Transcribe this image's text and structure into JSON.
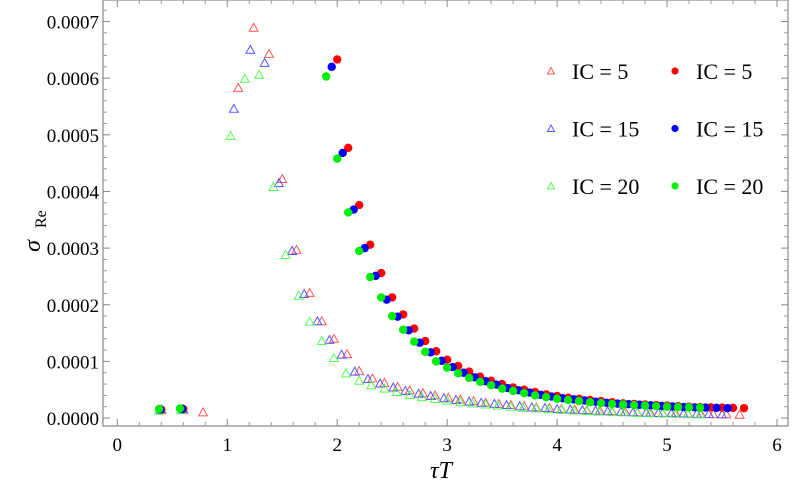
{
  "chart_data": {
    "type": "scatter",
    "title": "",
    "xlabel": "τT",
    "ylabel": "σ",
    "ylabel_subscript": "Re",
    "xlim": [
      -0.13,
      6.1
    ],
    "ylim": [
      -1.4e-05,
      0.000738
    ],
    "xticks": [
      0,
      1,
      2,
      3,
      4,
      5,
      6
    ],
    "xtick_labels": [
      "0",
      "1",
      "2",
      "3",
      "4",
      "5",
      "6"
    ],
    "yticks": [
      0,
      0.0001,
      0.0002,
      0.0003,
      0.0004,
      0.0005,
      0.0006,
      0.0007
    ],
    "ytick_labels": [
      "0.0000",
      "0.0001",
      "0.0002",
      "0.0003",
      "0.0004",
      "0.0005",
      "0.0006",
      "0.0007"
    ],
    "grid": false,
    "legend_placement": "top-right",
    "y_scale_factor": 0.0001,
    "series": [
      {
        "name": "IC = 5",
        "marker": "triangle",
        "color": "#ff5555",
        "x": [
          0.4,
          0.6,
          0.78,
          1.1,
          1.24,
          1.38,
          1.5,
          1.63,
          1.75,
          1.86,
          1.97,
          2.09,
          2.2,
          2.32,
          2.43,
          2.55,
          2.66,
          2.78,
          2.89,
          3.01,
          3.12,
          3.24,
          3.35,
          3.47,
          3.58,
          3.7,
          3.81,
          3.93,
          4.04,
          4.16,
          4.27,
          4.39,
          4.5,
          4.62,
          4.73,
          4.85,
          4.96,
          5.08,
          5.19,
          5.31,
          5.42,
          5.54,
          5.66
        ],
        "y": [
          0.15,
          0.15,
          0.1,
          5.83,
          6.89,
          6.43,
          4.22,
          2.97,
          2.21,
          1.71,
          1.4,
          1.13,
          0.83,
          0.7,
          0.62,
          0.55,
          0.49,
          0.44,
          0.4,
          0.36,
          0.33,
          0.3,
          0.27,
          0.25,
          0.23,
          0.21,
          0.19,
          0.18,
          0.16,
          0.15,
          0.14,
          0.13,
          0.12,
          0.11,
          0.1,
          0.095,
          0.09,
          0.085,
          0.08,
          0.075,
          0.07,
          0.065,
          0.06
        ]
      },
      {
        "name": "IC = 15",
        "marker": "triangle",
        "color": "#5555ff",
        "x": [
          0.4,
          0.6,
          1.06,
          1.21,
          1.34,
          1.47,
          1.59,
          1.7,
          1.82,
          1.93,
          2.04,
          2.16,
          2.28,
          2.39,
          2.51,
          2.62,
          2.74,
          2.85,
          2.97,
          3.08,
          3.2,
          3.31,
          3.43,
          3.54,
          3.66,
          3.77,
          3.89,
          4.0,
          4.12,
          4.23,
          4.35,
          4.46,
          4.58,
          4.69,
          4.81,
          4.92,
          5.04,
          5.15,
          5.27,
          5.38,
          5.5
        ],
        "y": [
          0.15,
          0.15,
          5.46,
          6.5,
          6.27,
          4.15,
          2.95,
          2.19,
          1.71,
          1.38,
          1.12,
          0.82,
          0.69,
          0.61,
          0.54,
          0.48,
          0.43,
          0.39,
          0.35,
          0.32,
          0.29,
          0.27,
          0.25,
          0.23,
          0.21,
          0.19,
          0.18,
          0.16,
          0.15,
          0.14,
          0.13,
          0.12,
          0.11,
          0.1,
          0.095,
          0.09,
          0.085,
          0.08,
          0.075,
          0.07,
          0.065
        ]
      },
      {
        "name": "IC = 20",
        "marker": "triangle",
        "color": "#55ff55",
        "x": [
          0.38,
          0.58,
          1.03,
          1.16,
          1.29,
          1.42,
          1.53,
          1.65,
          1.75,
          1.86,
          1.97,
          2.08,
          2.2,
          2.31,
          2.43,
          2.54,
          2.66,
          2.77,
          2.89,
          3.0,
          3.12,
          3.23,
          3.35,
          3.46,
          3.58,
          3.69,
          3.81,
          3.92,
          4.04,
          4.15,
          4.27,
          4.38,
          4.5,
          4.61,
          4.73,
          4.84,
          4.96,
          5.07,
          5.19,
          5.3
        ],
        "y": [
          0.13,
          0.14,
          4.98,
          5.99,
          6.06,
          4.08,
          2.88,
          2.16,
          1.7,
          1.36,
          1.06,
          0.79,
          0.66,
          0.58,
          0.52,
          0.46,
          0.41,
          0.37,
          0.34,
          0.31,
          0.28,
          0.26,
          0.24,
          0.22,
          0.2,
          0.18,
          0.17,
          0.155,
          0.145,
          0.135,
          0.125,
          0.115,
          0.105,
          0.1,
          0.09,
          0.085,
          0.08,
          0.075,
          0.07,
          0.065
        ]
      },
      {
        "name": "IC = 5",
        "marker": "circle",
        "color": "#ff0000",
        "x": [
          0.4,
          0.6,
          2.0,
          2.1,
          2.2,
          2.3,
          2.4,
          2.5,
          2.6,
          2.7,
          2.8,
          2.9,
          3.0,
          3.1,
          3.2,
          3.3,
          3.4,
          3.5,
          3.6,
          3.7,
          3.8,
          3.9,
          4.0,
          4.1,
          4.2,
          4.3,
          4.4,
          4.5,
          4.6,
          4.7,
          4.8,
          4.9,
          5.0,
          5.1,
          5.2,
          5.3,
          5.4,
          5.5,
          5.6,
          5.7
        ],
        "y": [
          0.15,
          0.16,
          6.33,
          4.77,
          3.76,
          3.06,
          2.56,
          2.13,
          1.83,
          1.58,
          1.36,
          1.18,
          1.03,
          0.92,
          0.82,
          0.73,
          0.66,
          0.6,
          0.54,
          0.5,
          0.46,
          0.42,
          0.39,
          0.36,
          0.34,
          0.32,
          0.3,
          0.28,
          0.26,
          0.25,
          0.24,
          0.23,
          0.22,
          0.21,
          0.2,
          0.195,
          0.19,
          0.185,
          0.18,
          0.175
        ]
      },
      {
        "name": "IC = 15",
        "marker": "circle",
        "color": "#0000ff",
        "x": [
          0.39,
          0.59,
          1.95,
          2.05,
          2.15,
          2.25,
          2.35,
          2.45,
          2.55,
          2.65,
          2.75,
          2.85,
          2.95,
          3.05,
          3.15,
          3.25,
          3.35,
          3.45,
          3.55,
          3.65,
          3.75,
          3.85,
          3.95,
          4.05,
          4.15,
          4.25,
          4.35,
          4.45,
          4.55,
          4.65,
          4.75,
          4.85,
          4.95,
          5.05,
          5.15,
          5.25,
          5.35,
          5.45,
          5.55
        ],
        "y": [
          0.15,
          0.16,
          6.2,
          4.68,
          3.68,
          3.0,
          2.51,
          2.09,
          1.79,
          1.55,
          1.33,
          1.16,
          1.01,
          0.9,
          0.8,
          0.72,
          0.65,
          0.59,
          0.53,
          0.49,
          0.45,
          0.41,
          0.38,
          0.35,
          0.33,
          0.31,
          0.29,
          0.27,
          0.255,
          0.245,
          0.235,
          0.225,
          0.215,
          0.205,
          0.195,
          0.19,
          0.185,
          0.18,
          0.175
        ]
      },
      {
        "name": "IC = 20",
        "marker": "circle",
        "color": "#00ee00",
        "x": [
          0.38,
          0.57,
          1.9,
          2.0,
          2.1,
          2.2,
          2.3,
          2.4,
          2.5,
          2.6,
          2.7,
          2.8,
          2.9,
          3.0,
          3.1,
          3.2,
          3.3,
          3.4,
          3.5,
          3.6,
          3.7,
          3.8,
          3.9,
          4.0,
          4.1,
          4.2,
          4.3,
          4.4,
          4.5,
          4.6,
          4.7,
          4.8,
          4.9,
          5.0,
          5.1,
          5.2,
          5.3
        ],
        "y": [
          0.16,
          0.17,
          6.03,
          4.58,
          3.63,
          2.95,
          2.49,
          2.13,
          1.8,
          1.56,
          1.35,
          1.17,
          1.0,
          0.89,
          0.79,
          0.71,
          0.64,
          0.58,
          0.52,
          0.48,
          0.44,
          0.4,
          0.37,
          0.34,
          0.32,
          0.3,
          0.28,
          0.265,
          0.25,
          0.24,
          0.23,
          0.22,
          0.21,
          0.2,
          0.195,
          0.19,
          0.185
        ]
      }
    ],
    "legend": [
      {
        "label": "IC = 5",
        "marker": "triangle",
        "color": "#ff5555"
      },
      {
        "label": "IC = 5",
        "marker": "circle",
        "color": "#ff0000"
      },
      {
        "label": "IC = 15",
        "marker": "triangle",
        "color": "#5555ff"
      },
      {
        "label": "IC = 15",
        "marker": "circle",
        "color": "#0000ff"
      },
      {
        "label": "IC = 20",
        "marker": "triangle",
        "color": "#55ff55"
      },
      {
        "label": "IC = 20",
        "marker": "circle",
        "color": "#00ee00"
      }
    ]
  }
}
